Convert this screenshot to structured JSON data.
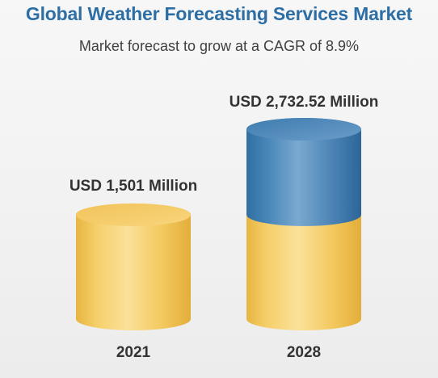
{
  "chart_data": {
    "type": "bar",
    "title": "Global Weather Forecasting Services Market",
    "subtitle": "Market forecast to grow at a CAGR of 8.9%",
    "categories": [
      "2021",
      "2028"
    ],
    "values": [
      1501,
      2732.52
    ],
    "value_labels": [
      "USD 1,501 Million",
      "USD 2,732.52 Million"
    ],
    "base_value": 1501,
    "unit": "USD Million",
    "ylim": [
      0,
      2732.52
    ],
    "grid": false,
    "legend": "none",
    "colors": {
      "base": "#f2c75c",
      "growth": "#4a86b8",
      "title": "#2d6ea5",
      "text": "#333333"
    }
  }
}
